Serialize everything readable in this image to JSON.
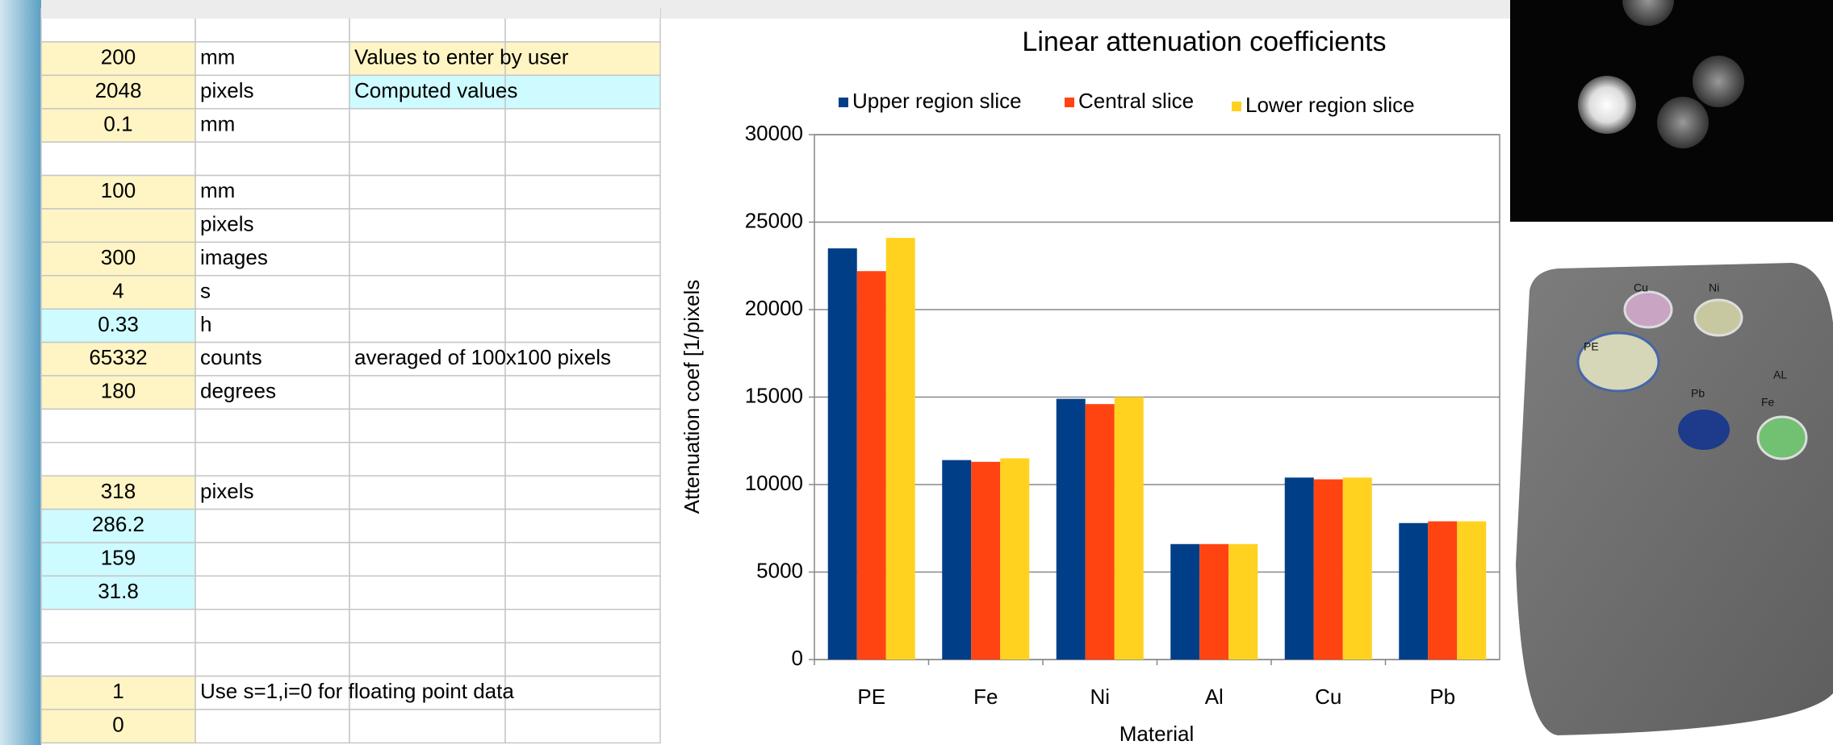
{
  "spreadsheet": {
    "rows": [
      {},
      {
        "a": "200",
        "b": "mm",
        "c": "Values to enter by user"
      },
      {
        "a": "2048",
        "b": "pixels",
        "c": "Computed values"
      },
      {
        "a": "0.1",
        "b": "mm"
      },
      {},
      {
        "a": "100",
        "b": "mm"
      },
      {
        "b": "pixels"
      },
      {
        "a": "300",
        "b": "images"
      },
      {
        "a": "4",
        "b": "s"
      },
      {
        "a": "0.33",
        "b": "h"
      },
      {
        "a": "65332",
        "b": "counts",
        "c": "averaged of 100x100 pixels"
      },
      {
        "a": "180",
        "b": "degrees"
      },
      {},
      {},
      {
        "a": "318",
        "b": "pixels"
      },
      {
        "a": "286.2"
      },
      {
        "a": "159"
      },
      {
        "a": "31.8"
      },
      {},
      {},
      {
        "a": "1",
        "b": "Use s=1,i=0 for floating point data"
      },
      {
        "a": "0"
      }
    ]
  },
  "chart_data": {
    "type": "bar",
    "title": "Linear attenuation coefficients",
    "x_label": "Material",
    "y_label": "Attenuation coef [1/pixels",
    "categories": [
      "PE",
      "Fe",
      "Ni",
      "Al",
      "Cu",
      "Pb"
    ],
    "series": [
      {
        "name": "Upper region slice",
        "color": "#003f87",
        "values": [
          23500,
          11400,
          14900,
          6600,
          10400,
          7800
        ]
      },
      {
        "name": "Central slice",
        "color": "#ff4412",
        "values": [
          22200,
          11300,
          14600,
          6600,
          10300,
          7900
        ]
      },
      {
        "name": "Lower region slice",
        "color": "#ffd21f",
        "values": [
          24100,
          11500,
          15000,
          6600,
          10400,
          7900
        ]
      }
    ],
    "ylim": [
      0,
      30000
    ],
    "yticks": [
      0,
      5000,
      10000,
      15000,
      20000,
      25000,
      30000
    ],
    "grid": true
  },
  "render": {
    "labels": [
      "Cu",
      "Ni",
      "PE",
      "Pb",
      "AL",
      "Fe"
    ]
  }
}
